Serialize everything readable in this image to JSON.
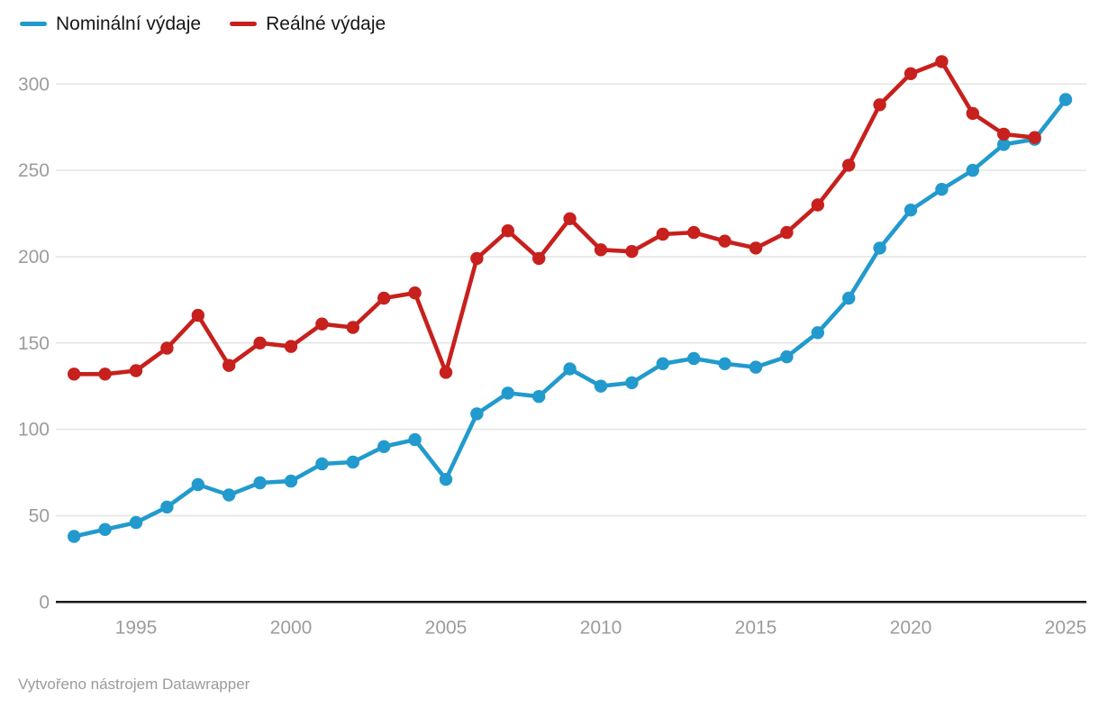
{
  "legend": {
    "items": [
      {
        "label": "Nominální výdaje",
        "color": "#229ACD"
      },
      {
        "label": "Reálné výdaje",
        "color": "#C7201D"
      }
    ]
  },
  "footer": {
    "text": "Vytvořeno nástrojem Datawrapper"
  },
  "chart_data": {
    "type": "line",
    "title": "",
    "xlabel": "",
    "ylabel": "",
    "grid": true,
    "legend_position": "top-left",
    "xlim": [
      1993,
      2025
    ],
    "ylim": [
      0,
      320
    ],
    "x_ticks": [
      1995,
      2000,
      2005,
      2010,
      2015,
      2020,
      2025
    ],
    "y_ticks": [
      0,
      50,
      100,
      150,
      200,
      250,
      300
    ],
    "x": [
      1993,
      1994,
      1995,
      1996,
      1997,
      1998,
      1999,
      2000,
      2001,
      2002,
      2003,
      2004,
      2005,
      2006,
      2007,
      2008,
      2009,
      2010,
      2011,
      2012,
      2013,
      2014,
      2015,
      2016,
      2017,
      2018,
      2019,
      2020,
      2021,
      2022,
      2023,
      2024,
      2025
    ],
    "series": [
      {
        "name": "Nominální výdaje",
        "color": "#229ACD",
        "values": [
          38,
          42,
          46,
          55,
          68,
          62,
          69,
          70,
          80,
          81,
          90,
          94,
          71,
          109,
          121,
          119,
          135,
          125,
          127,
          138,
          141,
          138,
          136,
          142,
          156,
          176,
          205,
          227,
          239,
          250,
          265,
          268,
          291
        ]
      },
      {
        "name": "Reálné výdaje",
        "color": "#C7201D",
        "values": [
          132,
          132,
          134,
          147,
          166,
          137,
          150,
          148,
          161,
          159,
          176,
          179,
          133,
          199,
          215,
          199,
          222,
          204,
          203,
          213,
          214,
          209,
          205,
          214,
          230,
          253,
          288,
          306,
          313,
          283,
          271,
          269,
          null
        ]
      }
    ],
    "colors": {
      "axis_text": "#9C9C9C",
      "gridline": "#E4E4E4",
      "axis_line": "#1A1A1A"
    }
  }
}
